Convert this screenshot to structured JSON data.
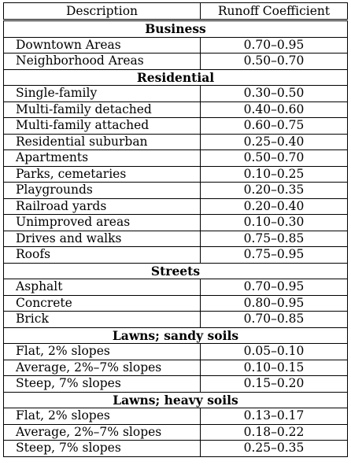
{
  "table": {
    "headers": [
      "Description",
      "Runoff Coefficient"
    ],
    "sections": [
      {
        "title": "Business",
        "rows": [
          [
            "Downtown Areas",
            "0.70–0.95"
          ],
          [
            "Neighborhood Areas",
            "0.50–0.70"
          ]
        ]
      },
      {
        "title": "Residential",
        "rows": [
          [
            "Single-family",
            "0.30–0.50"
          ],
          [
            "Multi-family detached",
            "0.40–0.60"
          ],
          [
            "Multi-family attached",
            "0.60–0.75"
          ],
          [
            "Residential suburban",
            "0.25–0.40"
          ],
          [
            "Apartments",
            "0.50–0.70"
          ],
          [
            "Parks, cemetaries",
            "0.10–0.25"
          ],
          [
            "Playgrounds",
            "0.20–0.35"
          ],
          [
            "Railroad yards",
            "0.20–0.40"
          ],
          [
            "Unimproved areas",
            "0.10–0.30"
          ],
          [
            "Drives and walks",
            "0.75–0.85"
          ],
          [
            "Roofs",
            "0.75–0.95"
          ]
        ]
      },
      {
        "title": "Streets",
        "rows": [
          [
            "Asphalt",
            "0.70–0.95"
          ],
          [
            "Concrete",
            "0.80–0.95"
          ],
          [
            "Brick",
            "0.70–0.85"
          ]
        ]
      },
      {
        "title": "Lawns; sandy soils",
        "rows": [
          [
            "Flat, 2% slopes",
            "0.05–0.10"
          ],
          [
            "Average, 2%–7% slopes",
            "0.10–0.15"
          ],
          [
            "Steep, 7% slopes",
            "0.15–0.20"
          ]
        ]
      },
      {
        "title": "Lawns; heavy soils",
        "rows": [
          [
            "Flat, 2% slopes",
            "0.13–0.17"
          ],
          [
            "Average, 2%–7% slopes",
            "0.18–0.22"
          ],
          [
            "Steep, 7% slopes",
            "0.25–0.35"
          ]
        ]
      }
    ]
  }
}
